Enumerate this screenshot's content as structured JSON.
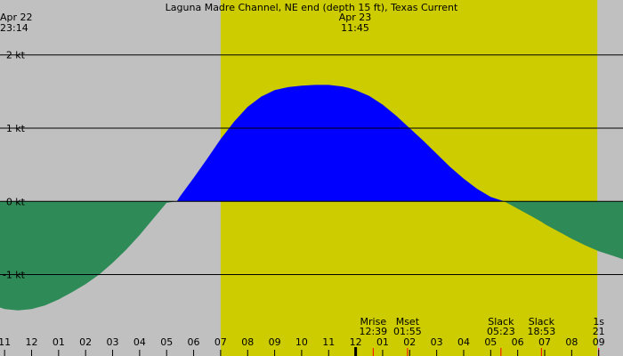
{
  "title": "Laguna Madre Channel, NE end (depth 15 ft), Texas Current",
  "left_header": {
    "date": "Apr 22",
    "time": "23:14"
  },
  "center_header": {
    "date": "Apr 23",
    "time": "11:45"
  },
  "colors": {
    "night_bg": "#c0c0c0",
    "day_bg": "#cccc00",
    "flood": "#0000ff",
    "ebb": "#2e8b57",
    "gridline": "#000000",
    "event_tick": "#ff0000"
  },
  "chart_data": {
    "type": "area",
    "title": "Laguna Madre Channel, NE end (depth 15 ft), Texas Current",
    "x_unit": "hour",
    "xlim": [
      10.83,
      33.9
    ],
    "ylim": [
      -1.65,
      2.75
    ],
    "y_ticks": [
      {
        "value": 2,
        "label": "2 kt"
      },
      {
        "value": 1,
        "label": "1 kt"
      },
      {
        "value": 0,
        "label": "0 kt"
      },
      {
        "value": -1,
        "label": "-1 kt"
      }
    ],
    "hour_ticks": [
      {
        "value": 11,
        "label": "11"
      },
      {
        "value": 12,
        "label": "12"
      },
      {
        "value": 13,
        "label": "01"
      },
      {
        "value": 14,
        "label": "02"
      },
      {
        "value": 15,
        "label": "03"
      },
      {
        "value": 16,
        "label": "04"
      },
      {
        "value": 17,
        "label": "05"
      },
      {
        "value": 18,
        "label": "06"
      },
      {
        "value": 19,
        "label": "07"
      },
      {
        "value": 20,
        "label": "08"
      },
      {
        "value": 21,
        "label": "09"
      },
      {
        "value": 22,
        "label": "10"
      },
      {
        "value": 23,
        "label": "11"
      },
      {
        "value": 24,
        "label": "12"
      },
      {
        "value": 25,
        "label": "01"
      },
      {
        "value": 26,
        "label": "02"
      },
      {
        "value": 27,
        "label": "03"
      },
      {
        "value": 28,
        "label": "04"
      },
      {
        "value": 29,
        "label": "05"
      },
      {
        "value": 30,
        "label": "06"
      },
      {
        "value": 31,
        "label": "07"
      },
      {
        "value": 32,
        "label": "08"
      },
      {
        "value": 33,
        "label": "09"
      }
    ],
    "midnight_tick": 24,
    "daylight": [
      19.0,
      32.95
    ],
    "events": [
      {
        "label": "Mset",
        "time_label": "01:55",
        "time": 25.92
      },
      {
        "label": "Slack",
        "time_label": "05:23",
        "time": 29.38
      },
      {
        "label": "Mrise",
        "time_label": "12:39",
        "time": 36.65
      },
      {
        "label": "Slack",
        "time_label": "18:53",
        "time": 42.88
      },
      {
        "label": "1s",
        "time_label": "21",
        "time": 45.0
      }
    ],
    "series": [
      {
        "x": [
          10.83,
          11.0,
          11.5,
          12.0,
          12.5,
          13.0,
          13.5,
          14.0,
          14.5,
          15.0,
          15.5,
          16.0,
          16.5,
          17.0,
          17.38,
          17.5,
          18.0,
          18.5,
          19.0,
          19.5,
          20.0,
          20.5,
          21.0,
          21.5,
          22.0,
          22.5,
          23.0,
          23.5,
          23.75,
          24.0,
          24.5,
          25.0,
          25.5,
          26.0,
          26.5,
          27.0,
          27.5,
          28.0,
          28.5,
          29.0,
          29.5,
          30.0,
          30.5,
          30.88,
          31.0,
          31.5,
          32.0,
          32.5,
          33.0,
          33.5,
          33.9
        ],
        "y": [
          -1.45,
          -1.47,
          -1.49,
          -1.47,
          -1.42,
          -1.34,
          -1.24,
          -1.13,
          -1.0,
          -0.84,
          -0.66,
          -0.46,
          -0.24,
          -0.02,
          0.0,
          0.07,
          0.32,
          0.58,
          0.85,
          1.09,
          1.29,
          1.43,
          1.52,
          1.56,
          1.58,
          1.59,
          1.59,
          1.57,
          1.55,
          1.52,
          1.44,
          1.32,
          1.17,
          1.0,
          0.83,
          0.65,
          0.47,
          0.31,
          0.17,
          0.06,
          0.0,
          -0.1,
          -0.2,
          -0.28,
          -0.31,
          -0.41,
          -0.51,
          -0.6,
          -0.68,
          -0.74,
          -0.79
        ]
      }
    ]
  }
}
